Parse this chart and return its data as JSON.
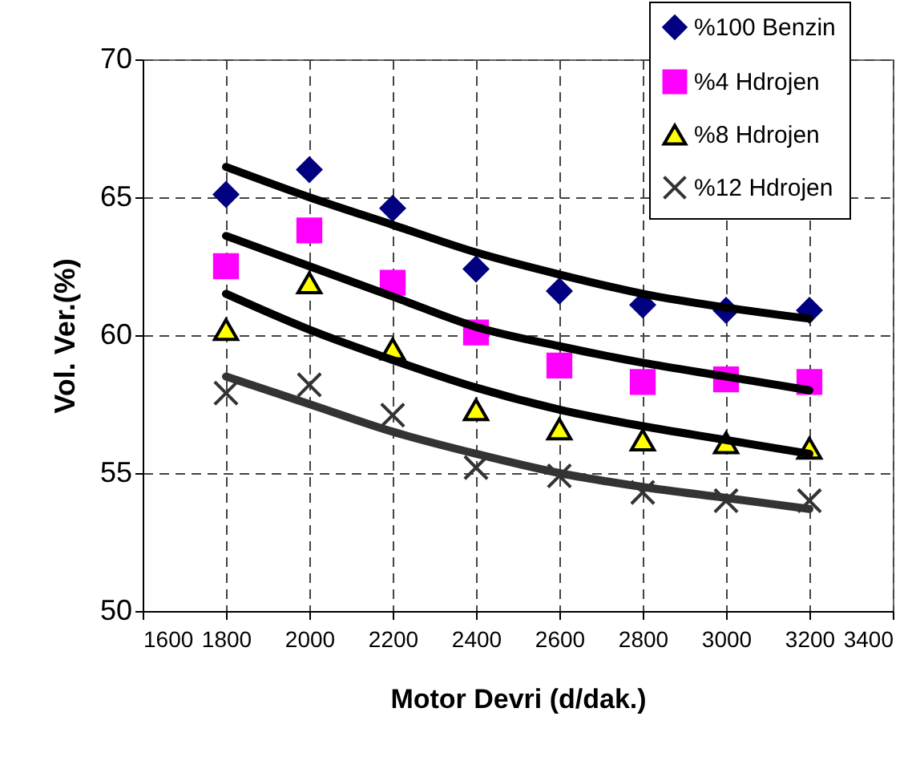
{
  "chart_data": {
    "type": "scatter",
    "xlabel": "Motor Devri (d/dak.)",
    "ylabel": "Vol. Ver.(%)",
    "x": [
      1800,
      2000,
      2200,
      2400,
      2600,
      2800,
      3000,
      3200
    ],
    "xlim": [
      1600,
      3400
    ],
    "xticks": [
      1600,
      1800,
      2000,
      2200,
      2400,
      2600,
      2800,
      3000,
      3200,
      3400
    ],
    "ylim": [
      50,
      70
    ],
    "yticks": [
      50,
      55,
      60,
      65,
      70
    ],
    "grid": true,
    "legend": "top right",
    "series": [
      {
        "name": "%100 Benzin",
        "color": "#000080",
        "marker": "diamond",
        "values": [
          65.1,
          66.0,
          64.6,
          62.4,
          61.6,
          61.1,
          60.9,
          60.9
        ]
      },
      {
        "name": "%4 Hdrojen",
        "color": "#ff00ff",
        "marker": "square",
        "values": [
          62.5,
          63.8,
          61.9,
          60.1,
          58.9,
          58.3,
          58.4,
          58.3
        ]
      },
      {
        "name": "%8 Hdrojen",
        "color": "#ffff00",
        "marker": "triangle",
        "values": [
          60.2,
          61.9,
          59.5,
          57.3,
          56.6,
          56.2,
          56.1,
          55.9
        ]
      },
      {
        "name": "%12 Hdrojen",
        "color": "#333333",
        "marker": "cross",
        "values": [
          57.9,
          58.2,
          57.1,
          55.2,
          54.9,
          54.3,
          54.0,
          54.0
        ]
      },
      {
        "type": "line",
        "color": "#000000",
        "values": [
          66.1,
          65.0,
          64.0,
          63.0,
          62.2,
          61.5,
          61.0,
          60.6
        ]
      },
      {
        "type": "line",
        "color": "#000000",
        "values": [
          63.6,
          62.5,
          61.4,
          60.3,
          59.6,
          59.0,
          58.5,
          58.0
        ]
      },
      {
        "type": "line",
        "color": "#000000",
        "values": [
          61.5,
          60.2,
          59.1,
          58.1,
          57.3,
          56.7,
          56.2,
          55.7
        ]
      },
      {
        "type": "line",
        "color": "#333333",
        "values": [
          58.5,
          57.5,
          56.5,
          55.7,
          55.0,
          54.5,
          54.1,
          53.7
        ]
      }
    ]
  }
}
